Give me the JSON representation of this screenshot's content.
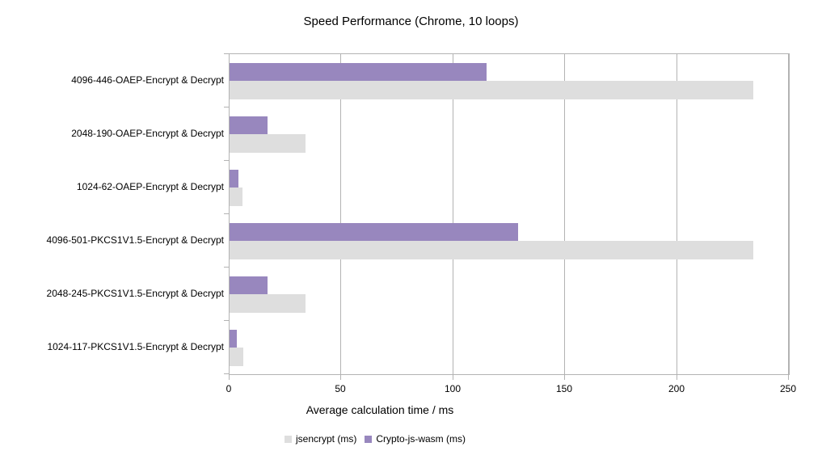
{
  "chart_data": {
    "type": "bar",
    "orientation": "horizontal",
    "title": "Speed Performance (Chrome, 10 loops)",
    "xlabel": "Average calculation time / ms",
    "ylabel": "",
    "xlim": [
      0,
      250
    ],
    "xticks": [
      0,
      50,
      100,
      150,
      200,
      250
    ],
    "grid": "vertical",
    "legend_position": "bottom-center",
    "categories": [
      "4096-446-OAEP-Encrypt & Decrypt",
      "2048-190-OAEP-Encrypt & Decrypt",
      "1024-62-OAEP-Encrypt & Decrypt",
      "4096-501-PKCS1V1.5-Encrypt & Decrypt",
      "2048-245-PKCS1V1.5-Encrypt & Decrypt",
      "1024-117-PKCS1V1.5-Encrypt & Decrypt"
    ],
    "series": [
      {
        "name": "jsencrypt (ms)",
        "color": "#dedede",
        "values": [
          234,
          34,
          5.6,
          234,
          34,
          6.2
        ]
      },
      {
        "name": "Crypto-js-wasm (ms)",
        "color": "#9887be",
        "values": [
          115,
          17,
          3.8,
          129,
          17,
          3.3
        ]
      }
    ]
  },
  "colors": {
    "grid": "#b3b3b3",
    "axis": "#b3b3b3",
    "text": "#000000",
    "background": "#ffffff"
  }
}
